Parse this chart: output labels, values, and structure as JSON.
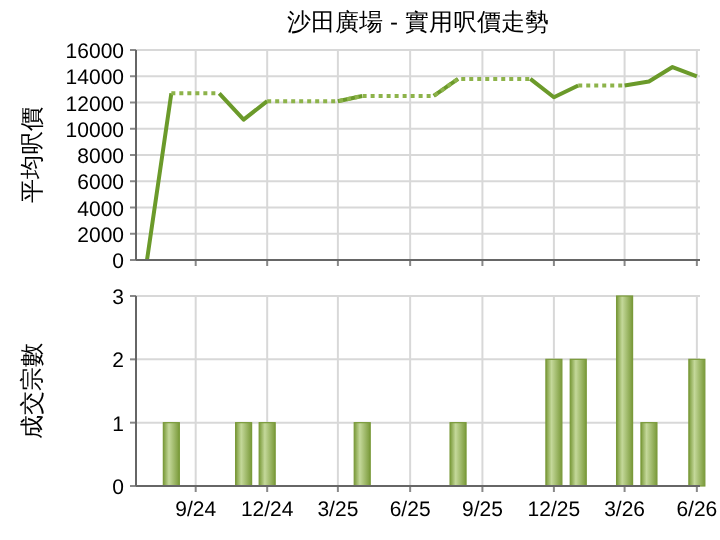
{
  "chart_data": [
    {
      "type": "line",
      "title": "沙田廣場 - 實用呎價走勢",
      "ylabel": "平均呎價",
      "x": [
        "2024-07",
        "2024-08",
        "2024-09",
        "2024-10",
        "2024-11",
        "2024-12",
        "2025-01",
        "2025-02",
        "2025-03",
        "2025-04",
        "2025-05",
        "2025-06",
        "2025-07",
        "2025-08",
        "2025-09",
        "2025-10",
        "2025-11",
        "2025-12",
        "2026-01",
        "2026-02",
        "2026-03",
        "2026-04",
        "2026-05",
        "2026-06"
      ],
      "series": [
        {
          "color": "#6b9a2a",
          "line_style": "solid",
          "values": [
            0,
            12700,
            null,
            12700,
            10700,
            12100,
            null,
            null,
            12100,
            12500,
            null,
            null,
            12500,
            13800,
            null,
            null,
            13800,
            12400,
            13300,
            null,
            13300,
            13600,
            14700,
            14000
          ]
        },
        {
          "color": "#8db34a",
          "line_style": "dotted",
          "values": [
            null,
            12700,
            12700,
            12700,
            null,
            12100,
            12100,
            12100,
            12100,
            12500,
            12500,
            12500,
            12500,
            13800,
            13800,
            13800,
            13800,
            null,
            13300,
            13300,
            13300,
            null,
            null,
            null
          ]
        }
      ],
      "xlim": [
        "2024-06-17",
        "2026-06-05"
      ],
      "xticks": [
        {
          "value": "2024-09",
          "label": null
        },
        {
          "value": "2024-12",
          "label": null
        },
        {
          "value": "2025-03",
          "label": null
        },
        {
          "value": "2025-06",
          "label": null
        },
        {
          "value": "2025-09",
          "label": null
        },
        {
          "value": "2025-12",
          "label": null
        },
        {
          "value": "2026-03",
          "label": null
        },
        {
          "value": "2026-06",
          "label": null
        }
      ],
      "ylim": [
        0,
        16000
      ],
      "yticks": [
        0,
        2000,
        4000,
        6000,
        8000,
        10000,
        12000,
        14000,
        16000
      ],
      "grid": true,
      "tick_labels": "y",
      "marker": "none"
    },
    {
      "type": "bar",
      "ylabel": "成交宗數",
      "x": [
        "2024-07",
        "2024-08",
        "2024-09",
        "2024-10",
        "2024-11",
        "2024-12",
        "2025-01",
        "2025-02",
        "2025-03",
        "2025-04",
        "2025-05",
        "2025-06",
        "2025-07",
        "2025-08",
        "2025-09",
        "2025-10",
        "2025-11",
        "2025-12",
        "2026-01",
        "2026-02",
        "2026-03",
        "2026-04",
        "2026-05",
        "2026-06"
      ],
      "values": [
        0,
        1,
        0,
        0,
        1,
        1,
        0,
        0,
        0,
        1,
        0,
        0,
        0,
        1,
        0,
        0,
        0,
        2,
        2,
        0,
        3,
        1,
        0,
        2
      ],
      "color": "#7a9a3a",
      "xlim": [
        "2024-06-17",
        "2026-06-05"
      ],
      "xticks": [
        {
          "value": "2024-09",
          "label": "9/24"
        },
        {
          "value": "2024-12",
          "label": "12/24"
        },
        {
          "value": "2025-03",
          "label": "3/25"
        },
        {
          "value": "2025-06",
          "label": "6/25"
        },
        {
          "value": "2025-09",
          "label": "9/25"
        },
        {
          "value": "2025-12",
          "label": "12/25"
        },
        {
          "value": "2026-03",
          "label": "3/26"
        },
        {
          "value": "2026-06",
          "label": "6/26"
        }
      ],
      "ylim": [
        0,
        3
      ],
      "yticks": [
        0,
        1,
        2,
        3
      ],
      "grid": true
    }
  ]
}
